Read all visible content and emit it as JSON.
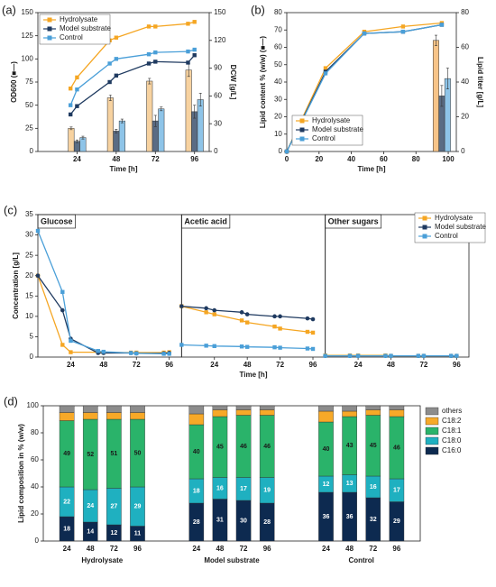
{
  "chart_data": [
    {
      "type": "combo",
      "label": "(a)",
      "xlabel": "Time [h]",
      "ylabel": "OD600 (■—)",
      "y2label": "DCW [g/L]",
      "xlim": [
        0,
        105
      ],
      "xticks": [
        24,
        48,
        72,
        96
      ],
      "ylim": [
        0,
        150
      ],
      "yticks": [
        0,
        25,
        50,
        75,
        100,
        125,
        150
      ],
      "y2lim": [
        0,
        150
      ],
      "y2ticks": [
        0,
        30,
        60,
        90,
        120,
        150
      ],
      "legend": "upper left",
      "x": [
        20,
        24,
        44,
        48,
        68,
        72,
        92,
        96
      ],
      "series": [
        {
          "name": "Hydrolysate",
          "color": "#f5a623",
          "values": [
            68,
            80,
            120,
            123,
            135,
            135,
            138,
            140
          ]
        },
        {
          "name": "Model substrate",
          "color": "#1f3a60",
          "values": [
            40,
            49,
            75,
            82,
            95,
            97,
            96,
            104
          ]
        },
        {
          "name": "Control",
          "color": "#4a9fd8",
          "values": [
            50,
            67,
            95,
            100,
            105,
            107,
            108,
            110
          ]
        }
      ],
      "bar_x": [
        24,
        48,
        72,
        96
      ],
      "bar_series": [
        {
          "color": "#f7d2a0",
          "axis": "y2",
          "values": [
            25,
            58,
            76,
            88
          ],
          "errors": [
            1.5,
            3,
            3,
            7
          ]
        },
        {
          "color": "#5a6c84",
          "axis": "y2",
          "values": [
            11,
            22,
            33,
            43
          ],
          "errors": [
            1.5,
            2,
            6,
            7
          ]
        },
        {
          "color": "#8ec4e8",
          "axis": "y2",
          "values": [
            15,
            33,
            46,
            56
          ],
          "errors": [
            1.5,
            2,
            2,
            7
          ]
        }
      ]
    },
    {
      "type": "combo",
      "label": "(b)",
      "xlabel": "Time [h]",
      "ylabel": "Lipid content % (w/w) (■—)",
      "y2label": "Lipid titer [g/L]",
      "xlim": [
        0,
        105
      ],
      "xticks": [
        0,
        20,
        40,
        60,
        80,
        100
      ],
      "ylim": [
        0,
        80
      ],
      "yticks": [
        0,
        10,
        20,
        30,
        40,
        50,
        60,
        70,
        80
      ],
      "y2lim": [
        0,
        80
      ],
      "y2ticks": [
        0,
        20,
        40,
        60,
        80
      ],
      "legend": "lower left",
      "x": [
        0,
        24,
        48,
        72,
        96
      ],
      "series": [
        {
          "name": "Hydrolysate",
          "color": "#f5a623",
          "values": [
            0,
            48,
            69,
            72,
            74
          ]
        },
        {
          "name": "Model substrate",
          "color": "#1f3a60",
          "values": [
            0,
            46,
            68,
            69,
            73
          ]
        },
        {
          "name": "Control",
          "color": "#4a9fd8",
          "values": [
            0,
            45,
            68,
            69,
            73
          ]
        }
      ],
      "bar_x": [
        96
      ],
      "bar_series": [
        {
          "color": "#f7c488",
          "axis": "y2",
          "values": [
            64
          ],
          "errors": [
            3
          ]
        },
        {
          "color": "#5a6c84",
          "axis": "y2",
          "values": [
            32
          ],
          "errors": [
            6
          ]
        },
        {
          "color": "#8ec4e8",
          "axis": "y2",
          "values": [
            42
          ],
          "errors": [
            6
          ]
        }
      ]
    },
    {
      "type": "line",
      "label": "(c)",
      "xlabel": "Time [h]",
      "ylabel": "Concentration [g/L]",
      "xlim": [
        0,
        105
      ],
      "xticks": [
        24,
        48,
        72,
        96
      ],
      "ylim": [
        0,
        35
      ],
      "yticks": [
        0,
        5,
        10,
        15,
        20,
        25,
        30,
        35
      ],
      "legend": "upper right",
      "x": [
        0,
        18,
        24,
        44,
        48,
        68,
        72,
        92,
        96
      ],
      "series": [
        {
          "name": "Hydrolysate",
          "color": "#f5a623"
        },
        {
          "name": "Model substrate",
          "color": "#1f3a60"
        },
        {
          "name": "Control",
          "color": "#4a9fd8"
        }
      ],
      "panels": [
        {
          "title": "Glucose",
          "values": [
            [
              20,
              3,
              1.2,
              1.2,
              1.1,
              1.1,
              1.1,
              1.1,
              1.2
            ],
            [
              20,
              11.5,
              4.5,
              1,
              1,
              1,
              0.9,
              0.9,
              1
            ],
            [
              31,
              16,
              4,
              1.5,
              1.3,
              1,
              0.9,
              0.8,
              0.8
            ]
          ]
        },
        {
          "title": "Acetic acid",
          "values": [
            [
              12.5,
              11,
              10.5,
              9,
              8.5,
              7.5,
              7,
              6.2,
              6
            ],
            [
              12.5,
              12,
              11.5,
              11,
              10.5,
              10,
              10,
              9.5,
              9.3
            ],
            [
              3,
              2.8,
              2.7,
              2.6,
              2.5,
              2.4,
              2.3,
              2.1,
              2
            ]
          ]
        },
        {
          "title": "Other sugars",
          "values": [
            [
              0.4,
              0.4,
              0.4,
              0.4,
              0.3,
              0.3,
              0.3,
              0.3,
              0.3
            ],
            [
              0.3,
              0.3,
              0.3,
              0.3,
              0.3,
              0.3,
              0.3,
              0.3,
              0.3
            ],
            [
              0.3,
              0.3,
              0.3,
              0.3,
              0.3,
              0.3,
              0.3,
              0.3,
              0.3
            ]
          ]
        }
      ]
    },
    {
      "type": "bar",
      "label": "(d)",
      "stacked": true,
      "ylabel": "Lipid composition in % (w/w)",
      "ylim": [
        0,
        100
      ],
      "yticks": [
        0,
        20,
        40,
        60,
        80,
        100
      ],
      "legend": "right",
      "groups": [
        "Hydrolysate",
        "Model substrate",
        "Control"
      ],
      "categories": [
        "24",
        "48",
        "72",
        "96",
        "24",
        "48",
        "72",
        "96",
        "24",
        "48",
        "72",
        "96"
      ],
      "series": [
        {
          "name": "C16:0",
          "color": "#0d2a50",
          "show_labels": true,
          "label_color": "#ffffff",
          "values": [
            18,
            14,
            12,
            11,
            28,
            31,
            30,
            28,
            36,
            36,
            32,
            29
          ]
        },
        {
          "name": "C18:0",
          "color": "#1fb0c0",
          "show_labels": true,
          "label_color": "#ffffff",
          "values": [
            22,
            24,
            27,
            29,
            18,
            16,
            17,
            19,
            12,
            13,
            16,
            17
          ]
        },
        {
          "name": "C18:1",
          "color": "#2ab36a",
          "show_labels": true,
          "label_color": "#1a1a1a",
          "values": [
            49,
            52,
            51,
            50,
            40,
            45,
            46,
            46,
            40,
            43,
            45,
            46
          ]
        },
        {
          "name": "C18:2",
          "color": "#f7a928",
          "show_labels": false,
          "label_color": "#1a1a1a",
          "values": [
            6,
            5,
            5,
            5,
            8,
            5,
            4,
            4,
            8,
            4,
            4,
            5
          ]
        },
        {
          "name": "others",
          "color": "#8c8c8c",
          "show_labels": false,
          "label_color": "#1a1a1a",
          "values": [
            5,
            5,
            5,
            5,
            6,
            3,
            3,
            3,
            4,
            4,
            3,
            3
          ]
        }
      ]
    }
  ]
}
